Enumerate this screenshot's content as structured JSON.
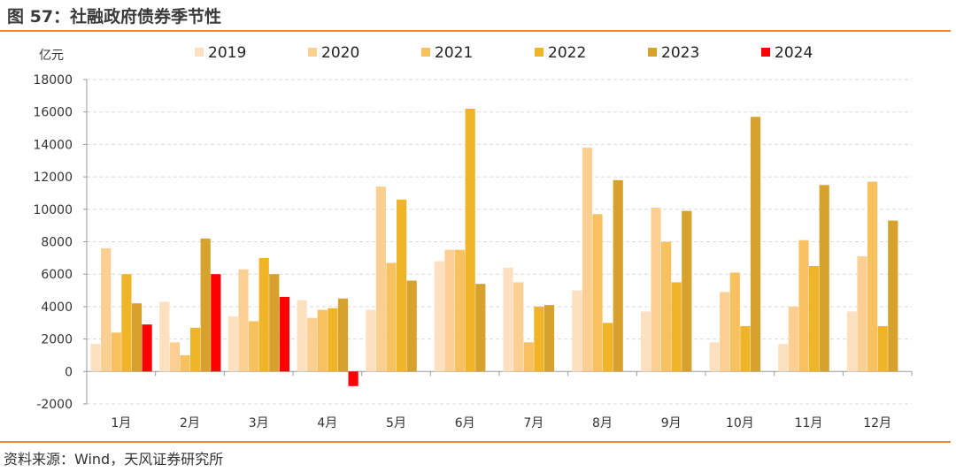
{
  "figure": {
    "title": "图 57：社融政府债券季节性",
    "source": "资料来源：Wind，天风证券研究所"
  },
  "chart_data": {
    "type": "bar",
    "unit_label": "亿元",
    "categories": [
      "1月",
      "2月",
      "3月",
      "4月",
      "5月",
      "6月",
      "7月",
      "8月",
      "9月",
      "10月",
      "11月",
      "12月"
    ],
    "ylim": [
      -2000,
      18000
    ],
    "yticks": [
      -2000,
      0,
      2000,
      4000,
      6000,
      8000,
      10000,
      12000,
      14000,
      16000,
      18000
    ],
    "grid": true,
    "legend_position": "top",
    "series": [
      {
        "name": "2019",
        "color": "#fde0bf",
        "values": [
          1700,
          4300,
          3400,
          4400,
          3800,
          6800,
          6400,
          5000,
          3700,
          1800,
          1700,
          3700
        ]
      },
      {
        "name": "2020",
        "color": "#fbcf92",
        "values": [
          7600,
          1800,
          6300,
          3300,
          11400,
          7500,
          5500,
          13800,
          10100,
          4900,
          4000,
          7100
        ]
      },
      {
        "name": "2021",
        "color": "#f8c160",
        "values": [
          2400,
          1000,
          3100,
          3800,
          6700,
          7500,
          1800,
          9700,
          8000,
          6100,
          8100,
          11700
        ]
      },
      {
        "name": "2022",
        "color": "#f0b429",
        "values": [
          6000,
          2700,
          7000,
          3900,
          10600,
          16200,
          4000,
          3000,
          5500,
          2800,
          6500,
          2800
        ]
      },
      {
        "name": "2023",
        "color": "#d7a12e",
        "values": [
          4200,
          8200,
          6000,
          4500,
          5600,
          5400,
          4100,
          11800,
          9900,
          15700,
          11500,
          9300
        ]
      },
      {
        "name": "2024",
        "color": "#ff0000",
        "values": [
          2900,
          6000,
          4600,
          -900,
          null,
          null,
          null,
          null,
          null,
          null,
          null,
          null
        ]
      }
    ]
  }
}
